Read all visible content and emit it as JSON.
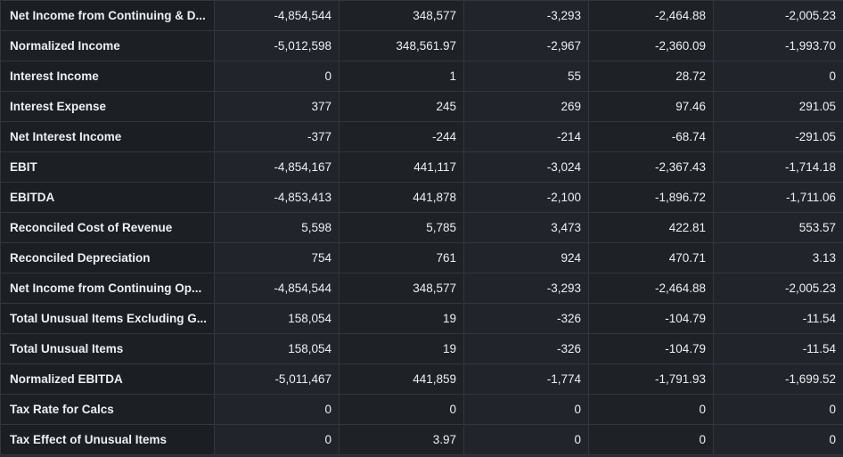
{
  "table": {
    "rows": [
      {
        "label": "Net Income from Continuing & D...",
        "values": [
          "-4,854,544",
          "348,577",
          "-3,293",
          "-2,464.88",
          "-2,005.23"
        ]
      },
      {
        "label": "Normalized Income",
        "values": [
          "-5,012,598",
          "348,561.97",
          "-2,967",
          "-2,360.09",
          "-1,993.70"
        ]
      },
      {
        "label": "Interest Income",
        "values": [
          "0",
          "1",
          "55",
          "28.72",
          "0"
        ]
      },
      {
        "label": "Interest Expense",
        "values": [
          "377",
          "245",
          "269",
          "97.46",
          "291.05"
        ]
      },
      {
        "label": "Net Interest Income",
        "values": [
          "-377",
          "-244",
          "-214",
          "-68.74",
          "-291.05"
        ]
      },
      {
        "label": "EBIT",
        "values": [
          "-4,854,167",
          "441,117",
          "-3,024",
          "-2,367.43",
          "-1,714.18"
        ]
      },
      {
        "label": "EBITDA",
        "values": [
          "-4,853,413",
          "441,878",
          "-2,100",
          "-1,896.72",
          "-1,711.06"
        ]
      },
      {
        "label": "Reconciled Cost of Revenue",
        "values": [
          "5,598",
          "5,785",
          "3,473",
          "422.81",
          "553.57"
        ]
      },
      {
        "label": "Reconciled Depreciation",
        "values": [
          "754",
          "761",
          "924",
          "470.71",
          "3.13"
        ]
      },
      {
        "label": "Net Income from Continuing Op...",
        "values": [
          "-4,854,544",
          "348,577",
          "-3,293",
          "-2,464.88",
          "-2,005.23"
        ]
      },
      {
        "label": "Total Unusual Items Excluding G...",
        "values": [
          "158,054",
          "19",
          "-326",
          "-104.79",
          "-11.54"
        ]
      },
      {
        "label": "Total Unusual Items",
        "values": [
          "158,054",
          "19",
          "-326",
          "-104.79",
          "-11.54"
        ]
      },
      {
        "label": "Normalized EBITDA",
        "values": [
          "-5,011,467",
          "441,859",
          "-1,774",
          "-1,791.93",
          "-1,699.52"
        ]
      },
      {
        "label": "Tax Rate for Calcs",
        "values": [
          "0",
          "0",
          "0",
          "0",
          "0"
        ]
      },
      {
        "label": "Tax Effect of Unusual Items",
        "values": [
          "0",
          "3.97",
          "0",
          "0",
          "0"
        ]
      }
    ]
  }
}
